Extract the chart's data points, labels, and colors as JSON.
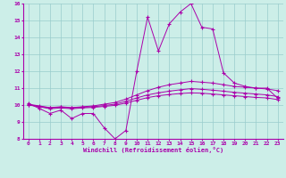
{
  "xlabel": "Windchill (Refroidissement éolien,°C)",
  "xlim": [
    -0.5,
    23.5
  ],
  "ylim": [
    8,
    16
  ],
  "xticks": [
    0,
    1,
    2,
    3,
    4,
    5,
    6,
    7,
    8,
    9,
    10,
    11,
    12,
    13,
    14,
    15,
    16,
    17,
    18,
    19,
    20,
    21,
    22,
    23
  ],
  "yticks": [
    8,
    9,
    10,
    11,
    12,
    13,
    14,
    15,
    16
  ],
  "background_color": "#cceee8",
  "line_color": "#aa00aa",
  "grid_color": "#99cccc",
  "series_jagged": [
    10.1,
    9.8,
    9.5,
    9.7,
    9.2,
    9.5,
    9.5,
    8.65,
    8.0,
    8.5,
    12.0,
    15.2,
    13.2,
    14.8,
    15.5,
    16.0,
    14.6,
    14.5,
    11.9,
    11.3,
    11.1,
    11.0,
    11.0,
    10.4
  ],
  "series_upper": [
    10.05,
    9.95,
    9.85,
    9.9,
    9.85,
    9.9,
    9.95,
    10.05,
    10.15,
    10.35,
    10.6,
    10.85,
    11.05,
    11.2,
    11.3,
    11.4,
    11.35,
    11.3,
    11.2,
    11.1,
    11.05,
    11.0,
    10.95,
    10.85
  ],
  "series_mid": [
    10.02,
    9.92,
    9.82,
    9.87,
    9.82,
    9.87,
    9.9,
    9.97,
    10.05,
    10.22,
    10.42,
    10.6,
    10.72,
    10.82,
    10.9,
    10.97,
    10.93,
    10.88,
    10.82,
    10.75,
    10.7,
    10.65,
    10.6,
    10.5
  ],
  "series_lower": [
    10.0,
    9.9,
    9.78,
    9.83,
    9.78,
    9.83,
    9.86,
    9.92,
    9.98,
    10.12,
    10.28,
    10.44,
    10.55,
    10.62,
    10.68,
    10.72,
    10.7,
    10.65,
    10.6,
    10.55,
    10.5,
    10.45,
    10.42,
    10.32
  ]
}
